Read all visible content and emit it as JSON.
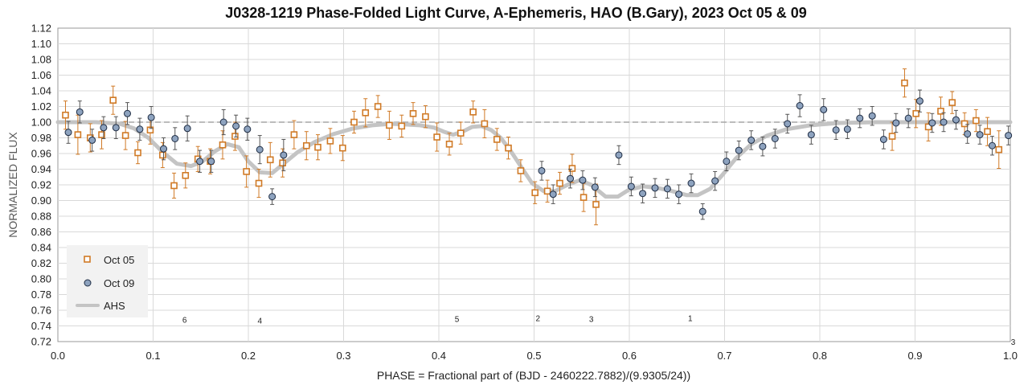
{
  "chart_data": {
    "type": "scatter",
    "title": "J0328-1219 Phase-Folded Light Curve, A-Ephemeris, HAO (B.Gary), 2023 Oct 05 & 09",
    "xlabel": "PHASE = Fractional part of (BJD - 2460222.7882)/(9.9305/24))",
    "ylabel": "NORMALIZED FLUX",
    "xlim": [
      0,
      1
    ],
    "ylim": [
      0.72,
      1.12
    ],
    "x_ticks": [
      "0.0",
      "0.1",
      "0.2",
      "0.3",
      "0.4",
      "0.5",
      "0.6",
      "0.7",
      "0.8",
      "0.9",
      "1.0"
    ],
    "y_ticks": [
      "0.72",
      "0.74",
      "0.76",
      "0.78",
      "0.80",
      "0.82",
      "0.84",
      "0.86",
      "0.88",
      "0.90",
      "0.92",
      "0.94",
      "0.96",
      "0.98",
      "1.00",
      "1.02",
      "1.04",
      "1.06",
      "1.08",
      "1.10",
      "1.12"
    ],
    "grid": true,
    "reference_line": 1.0,
    "legend_position": "bottom-left",
    "colors": {
      "oct05": "#d07a26",
      "oct09_fill": "#8ea3bf",
      "oct09_edge": "#1f2d44",
      "ahs": "#c4c4c4",
      "errorbar": "#555555"
    },
    "series": [
      {
        "name": "Oct 05",
        "marker": "square",
        "points": [
          [
            0.008,
            1.009,
            0.018
          ],
          [
            0.021,
            0.984,
            0.025
          ],
          [
            0.034,
            0.98,
            0.018
          ],
          [
            0.046,
            0.984,
            0.018
          ],
          [
            0.058,
            1.028,
            0.018
          ],
          [
            0.071,
            0.983,
            0.018
          ],
          [
            0.084,
            0.961,
            0.014
          ],
          [
            0.097,
            0.99,
            0.018
          ],
          [
            0.11,
            0.958,
            0.016
          ],
          [
            0.122,
            0.919,
            0.016
          ],
          [
            0.134,
            0.932,
            0.016
          ],
          [
            0.147,
            0.953,
            0.016
          ],
          [
            0.16,
            0.95,
            0.016
          ],
          [
            0.173,
            0.971,
            0.018
          ],
          [
            0.186,
            0.982,
            0.018
          ],
          [
            0.198,
            0.937,
            0.02
          ],
          [
            0.211,
            0.922,
            0.018
          ],
          [
            0.223,
            0.952,
            0.022
          ],
          [
            0.236,
            0.948,
            0.018
          ],
          [
            0.248,
            0.984,
            0.018
          ],
          [
            0.261,
            0.97,
            0.018
          ],
          [
            0.273,
            0.968,
            0.016
          ],
          [
            0.286,
            0.976,
            0.016
          ],
          [
            0.299,
            0.967,
            0.016
          ],
          [
            0.311,
            1.0,
            0.014
          ],
          [
            0.323,
            1.012,
            0.018
          ],
          [
            0.336,
            1.02,
            0.014
          ],
          [
            0.348,
            0.996,
            0.018
          ],
          [
            0.361,
            0.995,
            0.014
          ],
          [
            0.373,
            1.011,
            0.014
          ],
          [
            0.386,
            1.007,
            0.014
          ],
          [
            0.398,
            0.981,
            0.018
          ],
          [
            0.411,
            0.972,
            0.014
          ],
          [
            0.423,
            0.986,
            0.014
          ],
          [
            0.436,
            1.013,
            0.014
          ],
          [
            0.448,
            0.998,
            0.018
          ],
          [
            0.461,
            0.978,
            0.014
          ],
          [
            0.473,
            0.967,
            0.014
          ],
          [
            0.486,
            0.938,
            0.014
          ],
          [
            0.501,
            0.91,
            0.014
          ],
          [
            0.514,
            0.912,
            0.014
          ],
          [
            0.527,
            0.922,
            0.014
          ],
          [
            0.54,
            0.941,
            0.018
          ],
          [
            0.552,
            0.904,
            0.018
          ],
          [
            0.565,
            0.895,
            0.026
          ],
          [
            0.876,
            0.982,
            0.018
          ],
          [
            0.889,
            1.05,
            0.018
          ],
          [
            0.901,
            1.011,
            0.018
          ],
          [
            0.914,
            0.994,
            0.018
          ],
          [
            0.927,
            1.014,
            0.018
          ],
          [
            0.939,
            1.025,
            0.014
          ],
          [
            0.952,
            0.998,
            0.014
          ],
          [
            0.964,
            1.002,
            0.014
          ],
          [
            0.976,
            0.988,
            0.018
          ],
          [
            0.988,
            0.965,
            0.024
          ]
        ]
      },
      {
        "name": "Oct 09",
        "marker": "circle",
        "points": [
          [
            0.011,
            0.987,
            0.014
          ],
          [
            0.023,
            1.013,
            0.014
          ],
          [
            0.036,
            0.977,
            0.014
          ],
          [
            0.048,
            0.993,
            0.014
          ],
          [
            0.061,
            0.993,
            0.014
          ],
          [
            0.073,
            1.011,
            0.014
          ],
          [
            0.086,
            0.991,
            0.014
          ],
          [
            0.098,
            1.006,
            0.014
          ],
          [
            0.111,
            0.966,
            0.014
          ],
          [
            0.123,
            0.979,
            0.014
          ],
          [
            0.136,
            0.992,
            0.016
          ],
          [
            0.149,
            0.95,
            0.014
          ],
          [
            0.161,
            0.95,
            0.014
          ],
          [
            0.174,
            1.0,
            0.016
          ],
          [
            0.187,
            0.995,
            0.014
          ],
          [
            0.199,
            0.991,
            0.014
          ],
          [
            0.212,
            0.965,
            0.018
          ],
          [
            0.225,
            0.905,
            0.01
          ],
          [
            0.237,
            0.958,
            0.02
          ],
          [
            0.508,
            0.938,
            0.012
          ],
          [
            0.52,
            0.908,
            0.012
          ],
          [
            0.538,
            0.928,
            0.012
          ],
          [
            0.551,
            0.926,
            0.012
          ],
          [
            0.564,
            0.917,
            0.012
          ],
          [
            0.589,
            0.958,
            0.012
          ],
          [
            0.602,
            0.918,
            0.012
          ],
          [
            0.614,
            0.909,
            0.012
          ],
          [
            0.627,
            0.916,
            0.012
          ],
          [
            0.64,
            0.915,
            0.012
          ],
          [
            0.652,
            0.908,
            0.012
          ],
          [
            0.665,
            0.922,
            0.012
          ],
          [
            0.677,
            0.886,
            0.01
          ],
          [
            0.69,
            0.925,
            0.012
          ],
          [
            0.702,
            0.95,
            0.012
          ],
          [
            0.715,
            0.964,
            0.012
          ],
          [
            0.728,
            0.977,
            0.012
          ],
          [
            0.74,
            0.969,
            0.012
          ],
          [
            0.753,
            0.979,
            0.012
          ],
          [
            0.766,
            0.998,
            0.012
          ],
          [
            0.779,
            1.021,
            0.014
          ],
          [
            0.791,
            0.984,
            0.012
          ],
          [
            0.804,
            1.016,
            0.014
          ],
          [
            0.817,
            0.99,
            0.012
          ],
          [
            0.829,
            0.991,
            0.012
          ],
          [
            0.842,
            1.005,
            0.012
          ],
          [
            0.855,
            1.008,
            0.012
          ],
          [
            0.867,
            0.978,
            0.012
          ],
          [
            0.88,
            0.999,
            0.012
          ],
          [
            0.893,
            1.005,
            0.012
          ],
          [
            0.905,
            1.027,
            0.014
          ],
          [
            0.918,
            0.999,
            0.012
          ],
          [
            0.93,
            1.0,
            0.012
          ],
          [
            0.943,
            1.003,
            0.012
          ],
          [
            0.955,
            0.985,
            0.012
          ],
          [
            0.968,
            0.984,
            0.012
          ],
          [
            0.981,
            0.97,
            0.012
          ],
          [
            0.998,
            0.983,
            0.012
          ]
        ]
      },
      {
        "name": "AHS",
        "type": "line",
        "points": [
          [
            0.0,
            1.0
          ],
          [
            0.04,
            1.0
          ],
          [
            0.065,
            0.998
          ],
          [
            0.08,
            0.992
          ],
          [
            0.095,
            0.98
          ],
          [
            0.11,
            0.962
          ],
          [
            0.125,
            0.947
          ],
          [
            0.14,
            0.944
          ],
          [
            0.152,
            0.95
          ],
          [
            0.165,
            0.963
          ],
          [
            0.178,
            0.972
          ],
          [
            0.19,
            0.968
          ],
          [
            0.2,
            0.95
          ],
          [
            0.212,
            0.936
          ],
          [
            0.225,
            0.935
          ],
          [
            0.238,
            0.948
          ],
          [
            0.252,
            0.962
          ],
          [
            0.27,
            0.975
          ],
          [
            0.29,
            0.985
          ],
          [
            0.31,
            0.992
          ],
          [
            0.33,
            0.996
          ],
          [
            0.35,
            0.998
          ],
          [
            0.365,
            0.997
          ],
          [
            0.38,
            0.996
          ],
          [
            0.395,
            0.993
          ],
          [
            0.405,
            0.988
          ],
          [
            0.415,
            0.984
          ],
          [
            0.425,
            0.988
          ],
          [
            0.435,
            0.994
          ],
          [
            0.445,
            0.995
          ],
          [
            0.455,
            0.99
          ],
          [
            0.465,
            0.98
          ],
          [
            0.475,
            0.964
          ],
          [
            0.488,
            0.94
          ],
          [
            0.498,
            0.922
          ],
          [
            0.51,
            0.912
          ],
          [
            0.522,
            0.912
          ],
          [
            0.535,
            0.92
          ],
          [
            0.548,
            0.926
          ],
          [
            0.56,
            0.92
          ],
          [
            0.575,
            0.905
          ],
          [
            0.588,
            0.905
          ],
          [
            0.6,
            0.914
          ],
          [
            0.615,
            0.918
          ],
          [
            0.63,
            0.916
          ],
          [
            0.645,
            0.912
          ],
          [
            0.66,
            0.907
          ],
          [
            0.672,
            0.907
          ],
          [
            0.685,
            0.915
          ],
          [
            0.698,
            0.933
          ],
          [
            0.712,
            0.954
          ],
          [
            0.728,
            0.972
          ],
          [
            0.745,
            0.983
          ],
          [
            0.765,
            0.991
          ],
          [
            0.79,
            0.996
          ],
          [
            0.82,
            0.999
          ],
          [
            0.86,
            1.0
          ],
          [
            1.0,
            1.0
          ]
        ]
      }
    ],
    "point_labels": [
      {
        "x": 0.133,
        "y": 0.744,
        "text": "6"
      },
      {
        "x": 0.212,
        "y": 0.743,
        "text": "4"
      },
      {
        "x": 0.419,
        "y": 0.745,
        "text": "5"
      },
      {
        "x": 0.504,
        "y": 0.746,
        "text": "2"
      },
      {
        "x": 0.56,
        "y": 0.745,
        "text": "3"
      },
      {
        "x": 0.664,
        "y": 0.746,
        "text": "1"
      },
      {
        "x": 1.003,
        "y": 0.716,
        "text": "3"
      }
    ]
  }
}
